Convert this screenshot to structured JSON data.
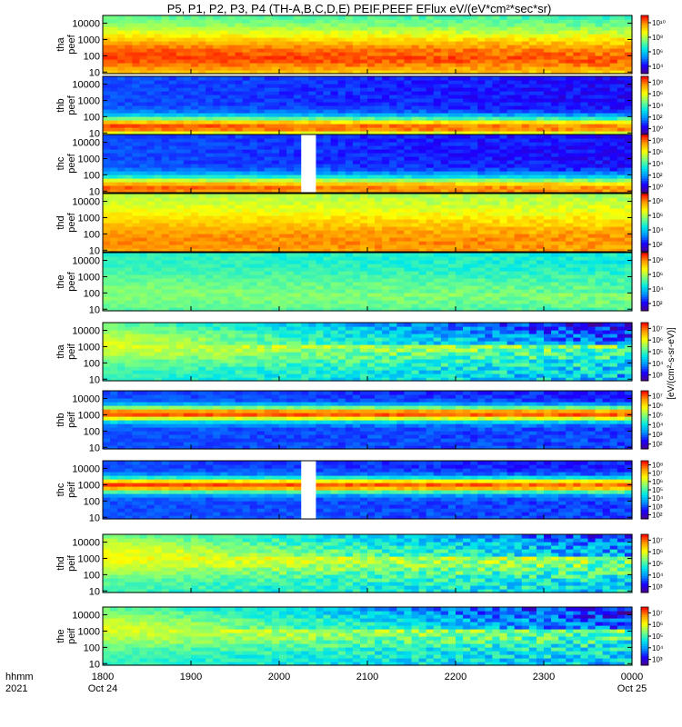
{
  "chart_data": {
    "type": "heatmap",
    "title": "P5, P1, P2, P3, P4 (TH-A,B,C,D,E) PEIF,PEEF EFlux eV/(eV*cm²*sec*sr)",
    "colorbar_unit_label": "[eV/(cm²-s-sr-eV)]",
    "x_axis": {
      "label_lines": [
        "hhmm",
        "2021"
      ],
      "ticks": [
        {
          "value": 0,
          "label": "1800",
          "date": "Oct 24"
        },
        {
          "value": 60,
          "label": "1900",
          "date": ""
        },
        {
          "value": 120,
          "label": "2000",
          "date": ""
        },
        {
          "value": 180,
          "label": "2100",
          "date": ""
        },
        {
          "value": 240,
          "label": "2200",
          "date": ""
        },
        {
          "value": 300,
          "label": "2300",
          "date": ""
        },
        {
          "value": 360,
          "label": "0000",
          "date": "Oct 25"
        }
      ],
      "xlim": [
        0,
        360
      ]
    },
    "y_axis": {
      "scale": "log",
      "ylim": [
        8,
        30000
      ],
      "ticks": [
        "10",
        "100",
        "1000",
        "10000"
      ]
    },
    "colormap": [
      "#4b0082",
      "#1c00ff",
      "#0090ff",
      "#00e8e8",
      "#7cff7c",
      "#ffff00",
      "#ff9a00",
      "#ff0000"
    ],
    "panels": [
      {
        "probe": "tha",
        "product": "peef",
        "cbar_ticks": [
          "10⁴",
          "10⁶",
          "10⁸",
          "10¹⁰"
        ],
        "base": 0.5,
        "core": 0.44,
        "core_logE": 2.0,
        "core_width": 1.6,
        "decay": 0.05
      },
      {
        "probe": "thb",
        "product": "peef",
        "cbar_ticks": [
          "10⁰",
          "10²",
          "10⁴",
          "10⁶",
          "10⁸"
        ],
        "base": 0.22,
        "core": 0.72,
        "core_logE": 1.4,
        "core_width": 0.6,
        "decay": 0.08
      },
      {
        "probe": "thc",
        "product": "peef",
        "cbar_ticks": [
          "10⁰",
          "10²",
          "10⁴",
          "10⁶",
          "10⁸"
        ],
        "base": 0.22,
        "core": 0.7,
        "core_logE": 1.2,
        "core_width": 0.7,
        "decay": 0.08,
        "gap_minutes": [
          135,
          145
        ]
      },
      {
        "probe": "thd",
        "product": "peef",
        "cbar_ticks": [
          "10²",
          "10⁴",
          "10⁶",
          "10⁸"
        ],
        "base": 0.62,
        "core": 0.25,
        "core_logE": 1.6,
        "core_width": 1.8,
        "decay": 0.02
      },
      {
        "probe": "the",
        "product": "peef",
        "cbar_ticks": [
          "10²",
          "10⁴",
          "10⁶",
          "10⁸"
        ],
        "base": 0.48,
        "core": 0.1,
        "core_logE": 2.0,
        "core_width": 1.2,
        "decay": 0.04
      },
      {
        "probe": "tha",
        "product": "peif",
        "cbar_ticks": [
          "10³",
          "10⁴",
          "10⁵",
          "10⁶",
          "10⁷"
        ],
        "base": 0.48,
        "core": 0.2,
        "core_logE": 3.2,
        "core_width": 1.2,
        "decay": 0.45
      },
      {
        "probe": "thb",
        "product": "peif",
        "cbar_ticks": [
          "10²",
          "10³",
          "10⁴",
          "10⁵",
          "10⁶",
          "10⁷"
        ],
        "base": 0.22,
        "core": 0.72,
        "core_logE": 3.1,
        "core_width": 0.45,
        "decay": 0.05
      },
      {
        "probe": "thc",
        "product": "peif",
        "cbar_ticks": [
          "10²",
          "10³",
          "10⁴",
          "10⁵",
          "10⁶",
          "10⁷",
          "10⁸"
        ],
        "base": 0.22,
        "core": 0.72,
        "core_logE": 3.0,
        "core_width": 0.45,
        "decay": 0.05,
        "gap_minutes": [
          135,
          145
        ]
      },
      {
        "probe": "thd",
        "product": "peif",
        "cbar_ticks": [
          "10³",
          "10⁴",
          "10⁵",
          "10⁶",
          "10⁷"
        ],
        "base": 0.5,
        "core": 0.22,
        "core_logE": 3.2,
        "core_width": 1.2,
        "decay": 0.4
      },
      {
        "probe": "the",
        "product": "peif",
        "cbar_ticks": [
          "10³",
          "10⁴",
          "10⁵",
          "10⁶",
          "10⁷"
        ],
        "base": 0.48,
        "core": 0.2,
        "core_logE": 3.2,
        "core_width": 1.2,
        "decay": 0.45
      }
    ]
  }
}
